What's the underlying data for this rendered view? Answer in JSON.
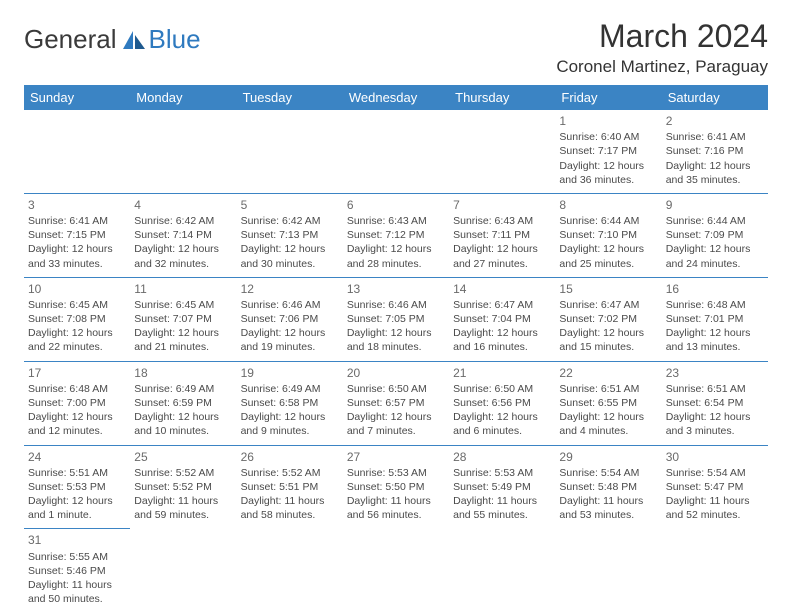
{
  "logo": {
    "text1": "General",
    "text2": "Blue"
  },
  "title": "March 2024",
  "location": "Coronel Martinez, Paraguay",
  "colors": {
    "header_bg": "#3b84c4",
    "header_text": "#ffffff",
    "border": "#3b84c4",
    "body_text": "#4a4a4a",
    "daynum": "#6a6a6a",
    "logo_blue": "#2f7abf"
  },
  "day_headers": [
    "Sunday",
    "Monday",
    "Tuesday",
    "Wednesday",
    "Thursday",
    "Friday",
    "Saturday"
  ],
  "weeks": [
    [
      null,
      null,
      null,
      null,
      null,
      {
        "n": "1",
        "sr": "Sunrise: 6:40 AM",
        "ss": "Sunset: 7:17 PM",
        "d1": "Daylight: 12 hours",
        "d2": "and 36 minutes."
      },
      {
        "n": "2",
        "sr": "Sunrise: 6:41 AM",
        "ss": "Sunset: 7:16 PM",
        "d1": "Daylight: 12 hours",
        "d2": "and 35 minutes."
      }
    ],
    [
      {
        "n": "3",
        "sr": "Sunrise: 6:41 AM",
        "ss": "Sunset: 7:15 PM",
        "d1": "Daylight: 12 hours",
        "d2": "and 33 minutes."
      },
      {
        "n": "4",
        "sr": "Sunrise: 6:42 AM",
        "ss": "Sunset: 7:14 PM",
        "d1": "Daylight: 12 hours",
        "d2": "and 32 minutes."
      },
      {
        "n": "5",
        "sr": "Sunrise: 6:42 AM",
        "ss": "Sunset: 7:13 PM",
        "d1": "Daylight: 12 hours",
        "d2": "and 30 minutes."
      },
      {
        "n": "6",
        "sr": "Sunrise: 6:43 AM",
        "ss": "Sunset: 7:12 PM",
        "d1": "Daylight: 12 hours",
        "d2": "and 28 minutes."
      },
      {
        "n": "7",
        "sr": "Sunrise: 6:43 AM",
        "ss": "Sunset: 7:11 PM",
        "d1": "Daylight: 12 hours",
        "d2": "and 27 minutes."
      },
      {
        "n": "8",
        "sr": "Sunrise: 6:44 AM",
        "ss": "Sunset: 7:10 PM",
        "d1": "Daylight: 12 hours",
        "d2": "and 25 minutes."
      },
      {
        "n": "9",
        "sr": "Sunrise: 6:44 AM",
        "ss": "Sunset: 7:09 PM",
        "d1": "Daylight: 12 hours",
        "d2": "and 24 minutes."
      }
    ],
    [
      {
        "n": "10",
        "sr": "Sunrise: 6:45 AM",
        "ss": "Sunset: 7:08 PM",
        "d1": "Daylight: 12 hours",
        "d2": "and 22 minutes."
      },
      {
        "n": "11",
        "sr": "Sunrise: 6:45 AM",
        "ss": "Sunset: 7:07 PM",
        "d1": "Daylight: 12 hours",
        "d2": "and 21 minutes."
      },
      {
        "n": "12",
        "sr": "Sunrise: 6:46 AM",
        "ss": "Sunset: 7:06 PM",
        "d1": "Daylight: 12 hours",
        "d2": "and 19 minutes."
      },
      {
        "n": "13",
        "sr": "Sunrise: 6:46 AM",
        "ss": "Sunset: 7:05 PM",
        "d1": "Daylight: 12 hours",
        "d2": "and 18 minutes."
      },
      {
        "n": "14",
        "sr": "Sunrise: 6:47 AM",
        "ss": "Sunset: 7:04 PM",
        "d1": "Daylight: 12 hours",
        "d2": "and 16 minutes."
      },
      {
        "n": "15",
        "sr": "Sunrise: 6:47 AM",
        "ss": "Sunset: 7:02 PM",
        "d1": "Daylight: 12 hours",
        "d2": "and 15 minutes."
      },
      {
        "n": "16",
        "sr": "Sunrise: 6:48 AM",
        "ss": "Sunset: 7:01 PM",
        "d1": "Daylight: 12 hours",
        "d2": "and 13 minutes."
      }
    ],
    [
      {
        "n": "17",
        "sr": "Sunrise: 6:48 AM",
        "ss": "Sunset: 7:00 PM",
        "d1": "Daylight: 12 hours",
        "d2": "and 12 minutes."
      },
      {
        "n": "18",
        "sr": "Sunrise: 6:49 AM",
        "ss": "Sunset: 6:59 PM",
        "d1": "Daylight: 12 hours",
        "d2": "and 10 minutes."
      },
      {
        "n": "19",
        "sr": "Sunrise: 6:49 AM",
        "ss": "Sunset: 6:58 PM",
        "d1": "Daylight: 12 hours",
        "d2": "and 9 minutes."
      },
      {
        "n": "20",
        "sr": "Sunrise: 6:50 AM",
        "ss": "Sunset: 6:57 PM",
        "d1": "Daylight: 12 hours",
        "d2": "and 7 minutes."
      },
      {
        "n": "21",
        "sr": "Sunrise: 6:50 AM",
        "ss": "Sunset: 6:56 PM",
        "d1": "Daylight: 12 hours",
        "d2": "and 6 minutes."
      },
      {
        "n": "22",
        "sr": "Sunrise: 6:51 AM",
        "ss": "Sunset: 6:55 PM",
        "d1": "Daylight: 12 hours",
        "d2": "and 4 minutes."
      },
      {
        "n": "23",
        "sr": "Sunrise: 6:51 AM",
        "ss": "Sunset: 6:54 PM",
        "d1": "Daylight: 12 hours",
        "d2": "and 3 minutes."
      }
    ],
    [
      {
        "n": "24",
        "sr": "Sunrise: 5:51 AM",
        "ss": "Sunset: 5:53 PM",
        "d1": "Daylight: 12 hours",
        "d2": "and 1 minute."
      },
      {
        "n": "25",
        "sr": "Sunrise: 5:52 AM",
        "ss": "Sunset: 5:52 PM",
        "d1": "Daylight: 11 hours",
        "d2": "and 59 minutes."
      },
      {
        "n": "26",
        "sr": "Sunrise: 5:52 AM",
        "ss": "Sunset: 5:51 PM",
        "d1": "Daylight: 11 hours",
        "d2": "and 58 minutes."
      },
      {
        "n": "27",
        "sr": "Sunrise: 5:53 AM",
        "ss": "Sunset: 5:50 PM",
        "d1": "Daylight: 11 hours",
        "d2": "and 56 minutes."
      },
      {
        "n": "28",
        "sr": "Sunrise: 5:53 AM",
        "ss": "Sunset: 5:49 PM",
        "d1": "Daylight: 11 hours",
        "d2": "and 55 minutes."
      },
      {
        "n": "29",
        "sr": "Sunrise: 5:54 AM",
        "ss": "Sunset: 5:48 PM",
        "d1": "Daylight: 11 hours",
        "d2": "and 53 minutes."
      },
      {
        "n": "30",
        "sr": "Sunrise: 5:54 AM",
        "ss": "Sunset: 5:47 PM",
        "d1": "Daylight: 11 hours",
        "d2": "and 52 minutes."
      }
    ],
    [
      {
        "n": "31",
        "sr": "Sunrise: 5:55 AM",
        "ss": "Sunset: 5:46 PM",
        "d1": "Daylight: 11 hours",
        "d2": "and 50 minutes."
      },
      null,
      null,
      null,
      null,
      null,
      null
    ]
  ]
}
